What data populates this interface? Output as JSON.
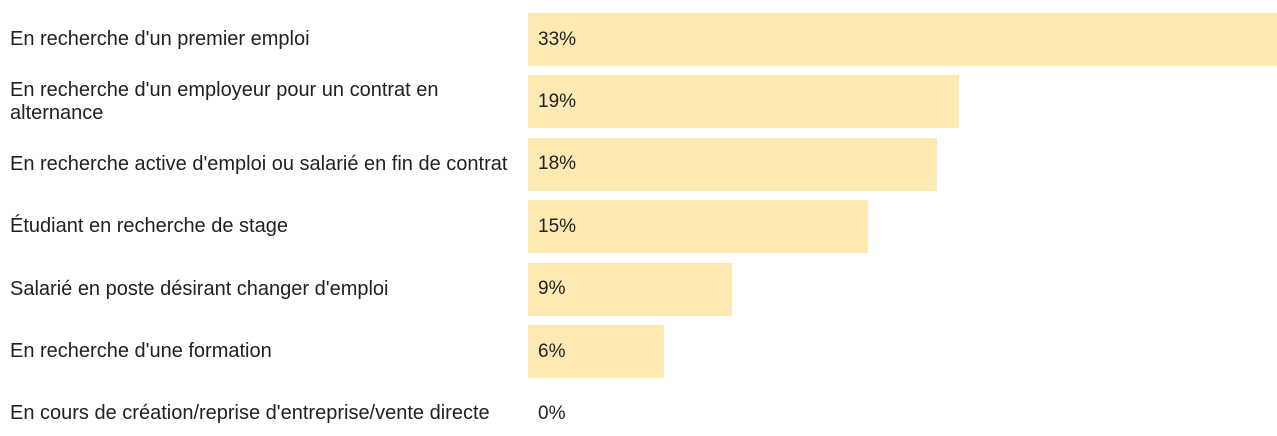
{
  "chart_data": {
    "type": "bar",
    "orientation": "horizontal",
    "color": "#fde9b2",
    "categories": [
      "En recherche d'un premier emploi",
      "En recherche d'un employeur pour un contrat en alternance",
      "En recherche active d'emploi ou salarié en fin de contrat",
      "Étudiant en recherche de stage",
      "Salarié en poste désirant changer d'emploi",
      "En recherche d'une formation",
      "En cours de création/reprise d'entreprise/vente directe"
    ],
    "values": [
      33,
      19,
      18,
      15,
      9,
      6,
      0
    ],
    "value_labels": [
      "33%",
      "19%",
      "18%",
      "15%",
      "9%",
      "6%",
      "0%"
    ]
  }
}
